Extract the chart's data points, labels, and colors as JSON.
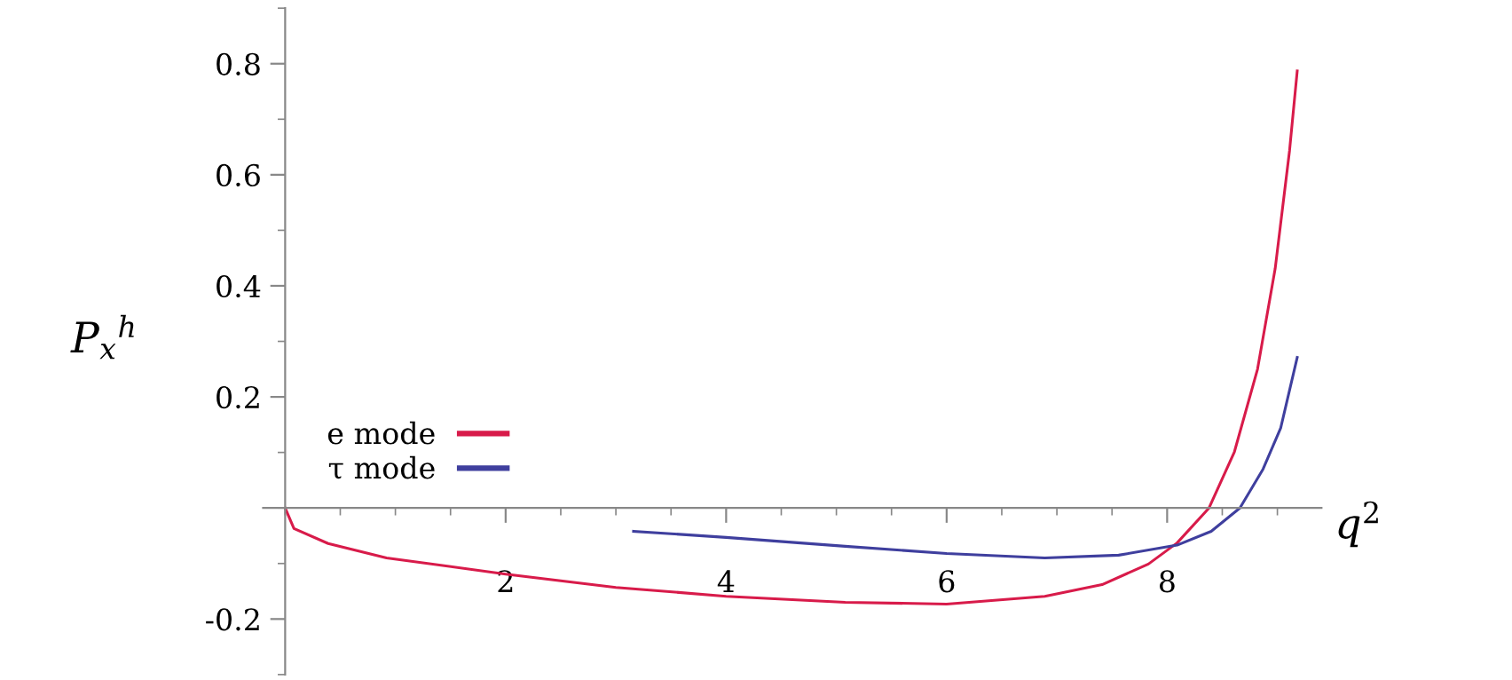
{
  "chart_data": {
    "type": "line",
    "xlabel": "q$^{2}$",
    "ylabel": "P$_{x}$$^{h}$",
    "xlim": [
      -0.2,
      9.4
    ],
    "ylim": [
      -0.3,
      0.9
    ],
    "xticks": [
      2,
      4,
      6,
      8
    ],
    "yticks": [
      -0.2,
      0.2,
      0.4,
      0.6,
      0.8
    ],
    "grid": false,
    "legend": "bottom left",
    "marker": "none",
    "line_style": "solid",
    "series": [
      {
        "name": "e mode",
        "color": "#d81b4a",
        "x": [
          0,
          0.08,
          0.39,
          0.92,
          2,
          3,
          4,
          5.08,
          6,
          6.89,
          7.41,
          7.83,
          8.09,
          8.38,
          8.61,
          8.82,
          8.98,
          9.11,
          9.18
        ],
        "values": [
          0,
          -0.037,
          -0.064,
          -0.09,
          -0.119,
          -0.143,
          -0.159,
          -0.17,
          -0.173,
          -0.159,
          -0.138,
          -0.101,
          -0.063,
          0,
          0.101,
          0.25,
          0.431,
          0.643,
          0.787
        ]
      },
      {
        "name": "τ mode",
        "color": "#3f3f9e",
        "x": [
          3.16,
          4,
          5.08,
          6,
          6.89,
          7.56,
          8.09,
          8.4,
          8.66,
          8.87,
          9.03,
          9.18
        ],
        "values": [
          -0.042,
          -0.053,
          -0.069,
          -0.082,
          -0.09,
          -0.085,
          -0.067,
          -0.042,
          0,
          0.07,
          0.144,
          0.271
        ]
      }
    ]
  }
}
